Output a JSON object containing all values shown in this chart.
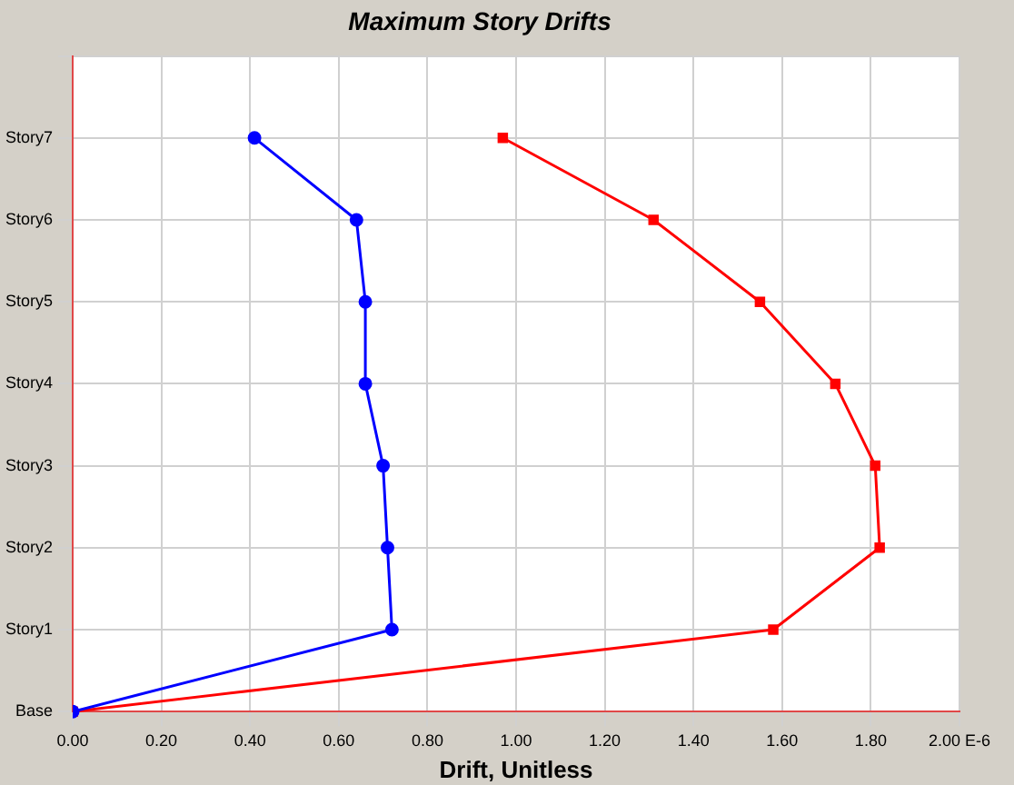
{
  "chart_data": {
    "type": "line",
    "title": "Maximum Story Drifts",
    "xlabel": "Drift, Unitless",
    "orientation": "horizontal",
    "categories": [
      null,
      "Story7",
      "Story6",
      "Story5",
      "Story4",
      "Story3",
      "Story2",
      "Story1",
      "Base"
    ],
    "xlim": [
      0,
      2
    ],
    "xticks": [
      {
        "value": 0,
        "label": "0.00"
      },
      {
        "value": 0.2,
        "label": "0.20"
      },
      {
        "value": 0.4,
        "label": "0.40"
      },
      {
        "value": 0.6,
        "label": "0.60"
      },
      {
        "value": 0.8,
        "label": "0.80"
      },
      {
        "value": 1,
        "label": "1.00"
      },
      {
        "value": 1.2,
        "label": "1.20"
      },
      {
        "value": 1.4,
        "label": "1.40"
      },
      {
        "value": 1.6,
        "label": "1.60"
      },
      {
        "value": 1.8,
        "label": "1.80"
      },
      {
        "value": 2,
        "label": "2.00 E-6"
      }
    ],
    "grid": true,
    "line_style": "solid",
    "series": [
      {
        "color": "#0000ff",
        "marker": "circle",
        "values": [
          null,
          0.41,
          0.64,
          0.66,
          0.66,
          0.7,
          0.71,
          0.72,
          0
        ]
      },
      {
        "color": "#ff0000",
        "marker": "square",
        "values": [
          null,
          0.97,
          1.31,
          1.55,
          1.72,
          1.81,
          1.82,
          1.58,
          0
        ]
      }
    ]
  }
}
